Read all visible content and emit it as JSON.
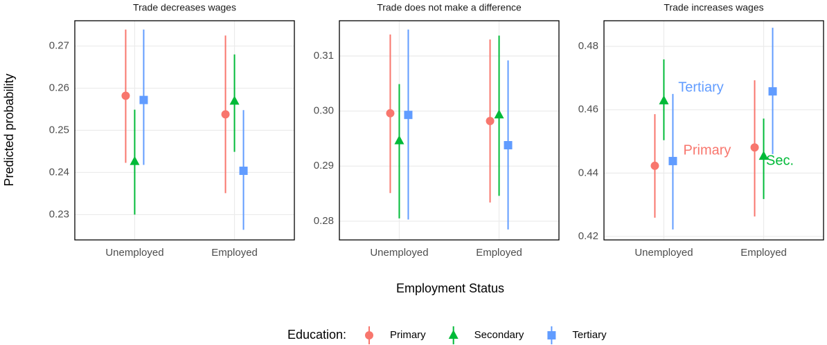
{
  "chart_data": [
    {
      "type": "errorbar",
      "title": "Trade decreases wages",
      "categories": [
        "Unemployed",
        "Employed"
      ],
      "ylim": [
        0.224,
        0.276
      ],
      "yticks": [
        0.23,
        0.24,
        0.25,
        0.26,
        0.27
      ],
      "grid": true,
      "series": [
        {
          "name": "Primary",
          "color": "#f8766d",
          "marker": "circle",
          "values": [
            0.2582,
            0.2538
          ],
          "lower": [
            0.2423,
            0.2351
          ],
          "upper": [
            0.2739,
            0.2725
          ]
        },
        {
          "name": "Secondary",
          "color": "#00ba38",
          "marker": "triangle",
          "values": [
            0.2426,
            0.2569
          ],
          "lower": [
            0.23,
            0.2449
          ],
          "upper": [
            0.2549,
            0.268
          ]
        },
        {
          "name": "Tertiary",
          "color": "#619cff",
          "marker": "square",
          "values": [
            0.2572,
            0.2404
          ],
          "lower": [
            0.2418,
            0.2264
          ],
          "upper": [
            0.2739,
            0.2548
          ]
        }
      ]
    },
    {
      "type": "errorbar",
      "title": "Trade does not make a difference",
      "categories": [
        "Unemployed",
        "Employed"
      ],
      "ylim": [
        0.2766,
        0.3164
      ],
      "yticks": [
        0.28,
        0.29,
        {
          "value": 0.3,
          "label": "0.30"
        },
        0.31
      ],
      "grid": true,
      "series": [
        {
          "name": "Primary",
          "color": "#f8766d",
          "marker": "circle",
          "values": [
            0.2996,
            0.2982
          ],
          "lower": [
            0.2851,
            0.2834
          ],
          "upper": [
            0.3139,
            0.313
          ]
        },
        {
          "name": "Secondary",
          "color": "#00ba38",
          "marker": "triangle",
          "values": [
            0.2946,
            0.2993
          ],
          "lower": [
            0.2805,
            0.2846
          ],
          "upper": [
            0.3049,
            0.3137
          ]
        },
        {
          "name": "Tertiary",
          "color": "#619cff",
          "marker": "square",
          "values": [
            0.2993,
            0.2938
          ],
          "lower": [
            0.2803,
            0.2785
          ],
          "upper": [
            0.3148,
            0.3092
          ]
        }
      ]
    },
    {
      "type": "errorbar",
      "title": "Trade increases wages",
      "categories": [
        "Unemployed",
        "Employed"
      ],
      "ylim": [
        0.4189,
        0.4881
      ],
      "yticks": [
        0.42,
        0.44,
        0.46,
        0.48
      ],
      "grid": true,
      "series": [
        {
          "name": "Primary",
          "color": "#f8766d",
          "marker": "circle",
          "values": [
            0.4423,
            0.4481
          ],
          "lower": [
            0.4259,
            0.4263
          ],
          "upper": [
            0.4586,
            0.4693
          ]
        },
        {
          "name": "Secondary",
          "color": "#00ba38",
          "marker": "triangle",
          "values": [
            0.4628,
            0.4453
          ],
          "lower": [
            0.4504,
            0.4318
          ],
          "upper": [
            0.4759,
            0.4572
          ]
        },
        {
          "name": "Tertiary",
          "color": "#619cff",
          "marker": "square",
          "values": [
            0.4438,
            0.4658
          ],
          "lower": [
            0.4222,
            0.446
          ],
          "upper": [
            0.465,
            0.4859
          ]
        }
      ],
      "annotations": [
        {
          "text": "Tertiary",
          "color": "#619cff"
        },
        {
          "text": "Primary",
          "color": "#f8766d"
        },
        {
          "text": "Sec.",
          "color": "#00ba38"
        }
      ]
    }
  ],
  "x_label": "Employment Status",
  "y_label": "Predicted probability",
  "legend_title": "Education:"
}
